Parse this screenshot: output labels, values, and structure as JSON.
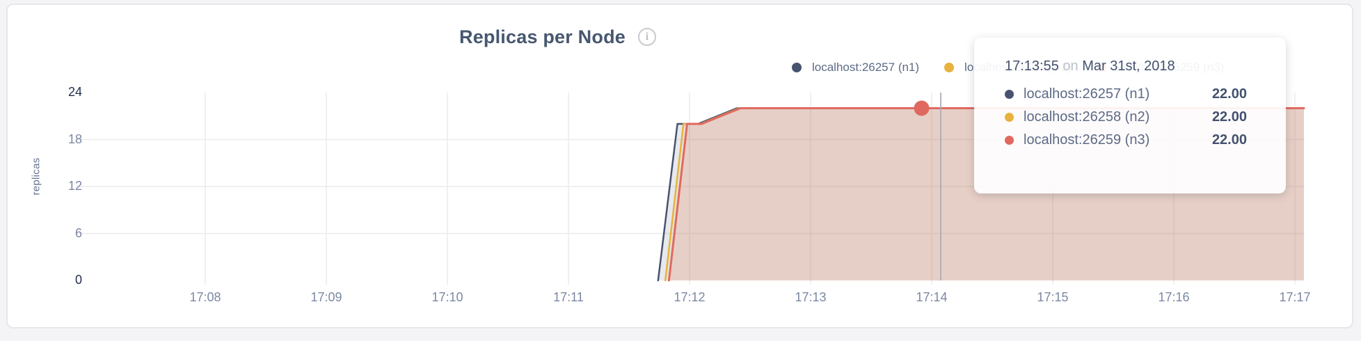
{
  "card": {
    "title": "Replicas per Node",
    "info_icon_glyph": "i"
  },
  "colors": {
    "n1": "#47536f",
    "n2": "#e7b23d",
    "n3": "#e0695f",
    "grid": "#ececec",
    "crosshair": "#aaadb5",
    "page_background": "#f4f4f6",
    "card_background": "#ffffff"
  },
  "legend": {
    "items": [
      {
        "label": "localhost:26257 (n1)",
        "color": "#47536f"
      },
      {
        "label": "localhost:26258 (n2)",
        "color": "#e7b23d"
      },
      {
        "label": "localhost:26259 (n3)",
        "color": "#e0695f"
      }
    ]
  },
  "tooltip": {
    "time": "17:13:55",
    "separator": "on",
    "date": "Mar 31st, 2018",
    "rows": [
      {
        "label": "localhost:26257 (n1)",
        "value": "22.00",
        "color": "#47536f"
      },
      {
        "label": "localhost:26258 (n2)",
        "value": "22.00",
        "color": "#e7b23d"
      },
      {
        "label": "localhost:26259 (n3)",
        "value": "22.00",
        "color": "#e0695f"
      }
    ]
  },
  "chart_data": {
    "type": "area",
    "title": "Replicas per Node",
    "xlabel": "",
    "ylabel": "replicas",
    "ylim": [
      0,
      24
    ],
    "grid": true,
    "legend_position": "top-right",
    "x_unit": "minutes after 17:08",
    "x_ticks": [
      {
        "label": "17:08",
        "t": 0
      },
      {
        "label": "17:09",
        "t": 1
      },
      {
        "label": "17:10",
        "t": 2
      },
      {
        "label": "17:11",
        "t": 3
      },
      {
        "label": "17:12",
        "t": 4
      },
      {
        "label": "17:13",
        "t": 5
      },
      {
        "label": "17:14",
        "t": 6
      },
      {
        "label": "17:15",
        "t": 7
      },
      {
        "label": "17:16",
        "t": 8
      },
      {
        "label": "17:17",
        "t": 9
      }
    ],
    "y_ticks": [
      {
        "value": 0,
        "emphasis": true,
        "grid": false
      },
      {
        "value": 6,
        "emphasis": false,
        "grid": true
      },
      {
        "value": 12,
        "emphasis": false,
        "grid": true
      },
      {
        "value": 18,
        "emphasis": false,
        "grid": true
      },
      {
        "value": 24,
        "emphasis": true,
        "grid": false
      }
    ],
    "series": [
      {
        "name": "localhost:26257 (n1)",
        "color": "#47536f",
        "fill": "rgba(71,83,111,0.13)",
        "line_width": 2.5,
        "points": [
          [
            3.74,
            0
          ],
          [
            3.9,
            20
          ],
          [
            4.07,
            20
          ],
          [
            4.39,
            22
          ],
          [
            9.075,
            22
          ]
        ]
      },
      {
        "name": "localhost:26258 (n2)",
        "color": "#e7b23d",
        "fill": "rgba(231,178,61,0.10)",
        "line_width": 2.5,
        "points": [
          [
            3.8,
            0
          ],
          [
            3.95,
            20
          ],
          [
            4.09,
            20
          ],
          [
            4.41,
            22
          ],
          [
            9.075,
            22
          ]
        ]
      },
      {
        "name": "localhost:26259 (n3)",
        "color": "#e0695f",
        "fill": "rgba(224,105,95,0.16)",
        "line_width": 3,
        "points": [
          [
            3.83,
            0
          ],
          [
            3.98,
            20
          ],
          [
            4.1,
            20
          ],
          [
            4.42,
            22
          ],
          [
            9.075,
            22
          ]
        ]
      }
    ],
    "hover": {
      "time_label": "17:13:55",
      "t": 5.9167,
      "value": 22,
      "crosshair_t": 6.075,
      "dot_color": "#e0695f",
      "dot_radius": 11
    }
  }
}
